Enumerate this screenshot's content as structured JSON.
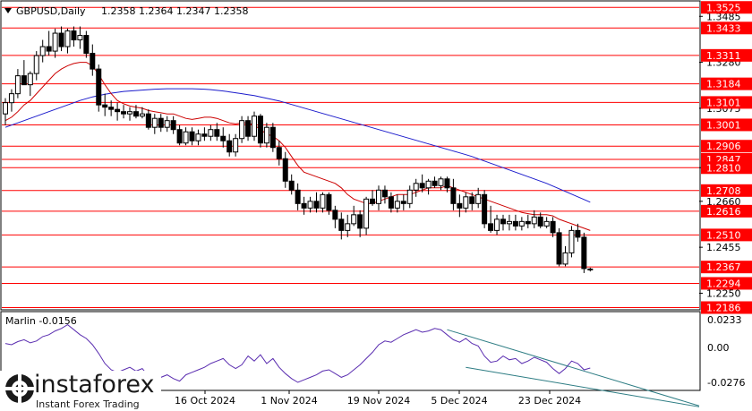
{
  "header": {
    "symbol": "GBPUSD,Daily",
    "ohlc": "1.2358 1.2364 1.2347 1.2358",
    "menu_icon": "triangle-down-icon"
  },
  "indicator": {
    "label": "Marlin -0.0156",
    "axis_labels": [
      "0.0233",
      "0.00",
      "-0.0276"
    ]
  },
  "watermark": {
    "brand": "instaforex",
    "tagline": "Instant Forex Trading",
    "icon": "instaforex-logo-icon"
  },
  "colors": {
    "level_line": "#ff0000",
    "level_tag_bg": "#ff0000",
    "level_tag_text": "#ffffff",
    "ma_fast": "#cc0000",
    "ma_slow": "#1c1ccc",
    "oscillator": "#5a2db0",
    "channel": "#2e7d84",
    "candle": "#000000"
  },
  "chart_data": {
    "type": "candlestick",
    "title": "GBPUSD,Daily",
    "x_tick_labels": [
      "16 Oct 2024",
      "1 Nov 2024",
      "19 Nov 2024",
      "5 Dec 2024",
      "23 Dec 2024"
    ],
    "y_tick_labels": [
      "1.3485",
      "1.3280",
      "1.3075",
      "1.2810",
      "1.2660",
      "1.2455",
      "1.2250"
    ],
    "y_range": [
      1.218,
      1.355
    ],
    "horizontal_levels": [
      1.3525,
      1.3433,
      1.3311,
      1.3184,
      1.3101,
      1.3001,
      1.2906,
      1.2847,
      1.281,
      1.2708,
      1.2616,
      1.251,
      1.2367,
      1.2294,
      1.2186
    ],
    "level_tags": [
      "1.3525",
      "1.3433",
      "1.3311",
      "1.3184",
      "1.3101",
      "1.3001",
      "1.2906",
      "1.2847",
      "1.2810",
      "1.2708",
      "1.2616",
      "1.2510",
      "1.2367",
      "1.2294",
      "1.2186"
    ],
    "candles": [
      {
        "o": 1.305,
        "h": 1.312,
        "l": 1.3,
        "c": 1.31
      },
      {
        "o": 1.31,
        "h": 1.316,
        "l": 1.306,
        "c": 1.314
      },
      {
        "o": 1.314,
        "h": 1.325,
        "l": 1.312,
        "c": 1.322
      },
      {
        "o": 1.322,
        "h": 1.329,
        "l": 1.319,
        "c": 1.318
      },
      {
        "o": 1.318,
        "h": 1.324,
        "l": 1.313,
        "c": 1.323
      },
      {
        "o": 1.323,
        "h": 1.333,
        "l": 1.32,
        "c": 1.331
      },
      {
        "o": 1.331,
        "h": 1.338,
        "l": 1.328,
        "c": 1.335
      },
      {
        "o": 1.335,
        "h": 1.342,
        "l": 1.331,
        "c": 1.333
      },
      {
        "o": 1.333,
        "h": 1.343,
        "l": 1.33,
        "c": 1.341
      },
      {
        "o": 1.341,
        "h": 1.344,
        "l": 1.333,
        "c": 1.335
      },
      {
        "o": 1.335,
        "h": 1.343,
        "l": 1.332,
        "c": 1.342
      },
      {
        "o": 1.342,
        "h": 1.344,
        "l": 1.335,
        "c": 1.338
      },
      {
        "o": 1.338,
        "h": 1.344,
        "l": 1.334,
        "c": 1.34
      },
      {
        "o": 1.34,
        "h": 1.342,
        "l": 1.33,
        "c": 1.332
      },
      {
        "o": 1.332,
        "h": 1.336,
        "l": 1.322,
        "c": 1.325
      },
      {
        "o": 1.325,
        "h": 1.327,
        "l": 1.306,
        "c": 1.309
      },
      {
        "o": 1.309,
        "h": 1.314,
        "l": 1.304,
        "c": 1.308
      },
      {
        "o": 1.308,
        "h": 1.311,
        "l": 1.304,
        "c": 1.307
      },
      {
        "o": 1.307,
        "h": 1.31,
        "l": 1.302,
        "c": 1.306
      },
      {
        "o": 1.306,
        "h": 1.309,
        "l": 1.303,
        "c": 1.305
      },
      {
        "o": 1.305,
        "h": 1.308,
        "l": 1.302,
        "c": 1.306
      },
      {
        "o": 1.306,
        "h": 1.309,
        "l": 1.303,
        "c": 1.304
      },
      {
        "o": 1.304,
        "h": 1.308,
        "l": 1.303,
        "c": 1.305
      },
      {
        "o": 1.305,
        "h": 1.307,
        "l": 1.298,
        "c": 1.299
      },
      {
        "o": 1.299,
        "h": 1.305,
        "l": 1.296,
        "c": 1.303
      },
      {
        "o": 1.303,
        "h": 1.305,
        "l": 1.297,
        "c": 1.299
      },
      {
        "o": 1.299,
        "h": 1.304,
        "l": 1.297,
        "c": 1.302
      },
      {
        "o": 1.302,
        "h": 1.304,
        "l": 1.296,
        "c": 1.298
      },
      {
        "o": 1.298,
        "h": 1.3,
        "l": 1.291,
        "c": 1.292
      },
      {
        "o": 1.292,
        "h": 1.299,
        "l": 1.291,
        "c": 1.297
      },
      {
        "o": 1.297,
        "h": 1.299,
        "l": 1.291,
        "c": 1.293
      },
      {
        "o": 1.293,
        "h": 1.298,
        "l": 1.291,
        "c": 1.296
      },
      {
        "o": 1.296,
        "h": 1.299,
        "l": 1.293,
        "c": 1.295
      },
      {
        "o": 1.295,
        "h": 1.3,
        "l": 1.293,
        "c": 1.298
      },
      {
        "o": 1.298,
        "h": 1.301,
        "l": 1.293,
        "c": 1.295
      },
      {
        "o": 1.295,
        "h": 1.299,
        "l": 1.29,
        "c": 1.293
      },
      {
        "o": 1.293,
        "h": 1.296,
        "l": 1.286,
        "c": 1.288
      },
      {
        "o": 1.288,
        "h": 1.296,
        "l": 1.286,
        "c": 1.294
      },
      {
        "o": 1.294,
        "h": 1.304,
        "l": 1.292,
        "c": 1.302
      },
      {
        "o": 1.302,
        "h": 1.304,
        "l": 1.293,
        "c": 1.295
      },
      {
        "o": 1.295,
        "h": 1.306,
        "l": 1.293,
        "c": 1.304
      },
      {
        "o": 1.304,
        "h": 1.305,
        "l": 1.29,
        "c": 1.292
      },
      {
        "o": 1.292,
        "h": 1.301,
        "l": 1.29,
        "c": 1.299
      },
      {
        "o": 1.299,
        "h": 1.301,
        "l": 1.288,
        "c": 1.29
      },
      {
        "o": 1.29,
        "h": 1.293,
        "l": 1.282,
        "c": 1.285
      },
      {
        "o": 1.285,
        "h": 1.288,
        "l": 1.272,
        "c": 1.275
      },
      {
        "o": 1.275,
        "h": 1.278,
        "l": 1.269,
        "c": 1.271
      },
      {
        "o": 1.271,
        "h": 1.274,
        "l": 1.262,
        "c": 1.265
      },
      {
        "o": 1.265,
        "h": 1.268,
        "l": 1.26,
        "c": 1.263
      },
      {
        "o": 1.263,
        "h": 1.268,
        "l": 1.261,
        "c": 1.266
      },
      {
        "o": 1.266,
        "h": 1.27,
        "l": 1.261,
        "c": 1.263
      },
      {
        "o": 1.263,
        "h": 1.27,
        "l": 1.261,
        "c": 1.269
      },
      {
        "o": 1.269,
        "h": 1.27,
        "l": 1.26,
        "c": 1.262
      },
      {
        "o": 1.262,
        "h": 1.264,
        "l": 1.254,
        "c": 1.258
      },
      {
        "o": 1.258,
        "h": 1.261,
        "l": 1.249,
        "c": 1.253
      },
      {
        "o": 1.253,
        "h": 1.26,
        "l": 1.25,
        "c": 1.256
      },
      {
        "o": 1.256,
        "h": 1.264,
        "l": 1.255,
        "c": 1.26
      },
      {
        "o": 1.26,
        "h": 1.262,
        "l": 1.25,
        "c": 1.254
      },
      {
        "o": 1.254,
        "h": 1.268,
        "l": 1.251,
        "c": 1.267
      },
      {
        "o": 1.267,
        "h": 1.271,
        "l": 1.264,
        "c": 1.265
      },
      {
        "o": 1.265,
        "h": 1.273,
        "l": 1.262,
        "c": 1.271
      },
      {
        "o": 1.271,
        "h": 1.273,
        "l": 1.265,
        "c": 1.268
      },
      {
        "o": 1.268,
        "h": 1.27,
        "l": 1.261,
        "c": 1.263
      },
      {
        "o": 1.263,
        "h": 1.269,
        "l": 1.261,
        "c": 1.266
      },
      {
        "o": 1.266,
        "h": 1.269,
        "l": 1.262,
        "c": 1.265
      },
      {
        "o": 1.265,
        "h": 1.273,
        "l": 1.263,
        "c": 1.271
      },
      {
        "o": 1.271,
        "h": 1.276,
        "l": 1.268,
        "c": 1.274
      },
      {
        "o": 1.274,
        "h": 1.278,
        "l": 1.27,
        "c": 1.272
      },
      {
        "o": 1.272,
        "h": 1.276,
        "l": 1.269,
        "c": 1.275
      },
      {
        "o": 1.275,
        "h": 1.277,
        "l": 1.272,
        "c": 1.273
      },
      {
        "o": 1.273,
        "h": 1.277,
        "l": 1.271,
        "c": 1.276
      },
      {
        "o": 1.276,
        "h": 1.277,
        "l": 1.27,
        "c": 1.272
      },
      {
        "o": 1.272,
        "h": 1.276,
        "l": 1.262,
        "c": 1.265
      },
      {
        "o": 1.265,
        "h": 1.269,
        "l": 1.259,
        "c": 1.263
      },
      {
        "o": 1.263,
        "h": 1.27,
        "l": 1.261,
        "c": 1.268
      },
      {
        "o": 1.268,
        "h": 1.27,
        "l": 1.262,
        "c": 1.265
      },
      {
        "o": 1.265,
        "h": 1.272,
        "l": 1.263,
        "c": 1.269
      },
      {
        "o": 1.269,
        "h": 1.271,
        "l": 1.254,
        "c": 1.256
      },
      {
        "o": 1.256,
        "h": 1.264,
        "l": 1.252,
        "c": 1.253
      },
      {
        "o": 1.253,
        "h": 1.26,
        "l": 1.251,
        "c": 1.258
      },
      {
        "o": 1.258,
        "h": 1.26,
        "l": 1.253,
        "c": 1.256
      },
      {
        "o": 1.256,
        "h": 1.26,
        "l": 1.253,
        "c": 1.257
      },
      {
        "o": 1.257,
        "h": 1.26,
        "l": 1.253,
        "c": 1.255
      },
      {
        "o": 1.255,
        "h": 1.259,
        "l": 1.253,
        "c": 1.257
      },
      {
        "o": 1.257,
        "h": 1.26,
        "l": 1.254,
        "c": 1.256
      },
      {
        "o": 1.256,
        "h": 1.262,
        "l": 1.254,
        "c": 1.259
      },
      {
        "o": 1.259,
        "h": 1.261,
        "l": 1.254,
        "c": 1.255
      },
      {
        "o": 1.255,
        "h": 1.259,
        "l": 1.254,
        "c": 1.257
      },
      {
        "o": 1.257,
        "h": 1.259,
        "l": 1.25,
        "c": 1.252
      },
      {
        "o": 1.252,
        "h": 1.254,
        "l": 1.237,
        "c": 1.238
      },
      {
        "o": 1.238,
        "h": 1.246,
        "l": 1.237,
        "c": 1.243
      },
      {
        "o": 1.243,
        "h": 1.255,
        "l": 1.241,
        "c": 1.253
      },
      {
        "o": 1.253,
        "h": 1.256,
        "l": 1.248,
        "c": 1.25
      },
      {
        "o": 1.25,
        "h": 1.252,
        "l": 1.234,
        "c": 1.236
      },
      {
        "o": 1.2358,
        "h": 1.2364,
        "l": 1.2347,
        "c": 1.2358
      }
    ],
    "ma_fast": [
      1.302,
      1.3035,
      1.306,
      1.309,
      1.311,
      1.314,
      1.317,
      1.32,
      1.323,
      1.325,
      1.3265,
      1.3275,
      1.328,
      1.328,
      1.3265,
      1.3225,
      1.318,
      1.314,
      1.311,
      1.3095,
      1.3085,
      1.308,
      1.3075,
      1.3065,
      1.306,
      1.3055,
      1.305,
      1.305,
      1.304,
      1.303,
      1.3025,
      1.303,
      1.3035,
      1.3035,
      1.303,
      1.302,
      1.301,
      1.3005,
      1.301,
      1.301,
      1.3,
      1.298,
      1.296,
      1.295,
      1.293,
      1.29,
      1.286,
      1.282,
      1.279,
      1.278,
      1.277,
      1.276,
      1.275,
      1.274,
      1.272,
      1.269,
      1.267,
      1.266,
      1.265,
      1.265,
      1.266,
      1.267,
      1.268,
      1.269,
      1.269,
      1.269,
      1.27,
      1.271,
      1.272,
      1.272,
      1.272,
      1.273,
      1.272,
      1.271,
      1.27,
      1.269,
      1.268,
      1.267,
      1.266,
      1.265,
      1.264,
      1.263,
      1.262,
      1.261,
      1.2605,
      1.26,
      1.26,
      1.26,
      1.2595,
      1.258,
      1.257,
      1.256,
      1.255,
      1.254,
      1.253
    ],
    "ma_slow": [
      1.299,
      1.3,
      1.301,
      1.302,
      1.303,
      1.304,
      1.305,
      1.306,
      1.307,
      1.308,
      1.309,
      1.31,
      1.311,
      1.3118,
      1.3126,
      1.3132,
      1.3138,
      1.3142,
      1.3146,
      1.315,
      1.3152,
      1.3154,
      1.3156,
      1.3158,
      1.316,
      1.3161,
      1.3162,
      1.3162,
      1.3162,
      1.3162,
      1.3162,
      1.3161,
      1.316,
      1.3158,
      1.3155,
      1.3152,
      1.3148,
      1.3144,
      1.314,
      1.3136,
      1.3132,
      1.3126,
      1.312,
      1.3114,
      1.3108,
      1.31,
      1.3092,
      1.3084,
      1.3076,
      1.3068,
      1.306,
      1.3052,
      1.3044,
      1.3036,
      1.3028,
      1.302,
      1.3012,
      1.3004,
      1.2996,
      1.2988,
      1.298,
      1.2972,
      1.2964,
      1.2956,
      1.2948,
      1.294,
      1.2932,
      1.2924,
      1.2916,
      1.2908,
      1.29,
      1.2892,
      1.2884,
      1.2876,
      1.2868,
      1.286,
      1.285,
      1.284,
      1.283,
      1.282,
      1.281,
      1.28,
      1.279,
      1.278,
      1.277,
      1.276,
      1.275,
      1.274,
      1.2728,
      1.2716,
      1.2704,
      1.2692,
      1.268,
      1.2668,
      1.2656
    ],
    "oscillator": {
      "name": "Marlin",
      "range": [
        -0.032,
        0.028
      ],
      "values": [
        0.004,
        0.003,
        0.0055,
        0.007,
        0.0045,
        0.006,
        0.0095,
        0.011,
        0.014,
        0.016,
        0.019,
        0.015,
        0.011,
        0.008,
        0.003,
        -0.004,
        -0.012,
        -0.017,
        -0.019,
        -0.017,
        -0.015,
        -0.018,
        -0.016,
        -0.022,
        -0.02,
        -0.023,
        -0.021,
        -0.024,
        -0.026,
        -0.021,
        -0.019,
        -0.017,
        -0.015,
        -0.012,
        -0.01,
        -0.008,
        -0.013,
        -0.016,
        -0.013,
        -0.006,
        -0.01,
        -0.005,
        -0.012,
        -0.008,
        -0.015,
        -0.02,
        -0.024,
        -0.027,
        -0.025,
        -0.023,
        -0.021,
        -0.018,
        -0.017,
        -0.02,
        -0.023,
        -0.021,
        -0.017,
        -0.013,
        -0.008,
        -0.003,
        0.003,
        0.006,
        0.005,
        0.008,
        0.011,
        0.013,
        0.015,
        0.013,
        0.014,
        0.016,
        0.015,
        0.011,
        0.007,
        0.005,
        0.008,
        0.004,
        0.002,
        -0.006,
        -0.011,
        -0.01,
        -0.006,
        -0.009,
        -0.008,
        -0.012,
        -0.01,
        -0.007,
        -0.009,
        -0.011,
        -0.016,
        -0.02,
        -0.016,
        -0.01,
        -0.012,
        -0.017,
        -0.0156
      ],
      "channel_upper": [
        [
          0.015,
          71
        ],
        [
          -0.027,
          99
        ]
      ],
      "channel_lower": [
        [
          -0.015,
          74
        ],
        [
          -0.036,
          99
        ]
      ]
    }
  }
}
